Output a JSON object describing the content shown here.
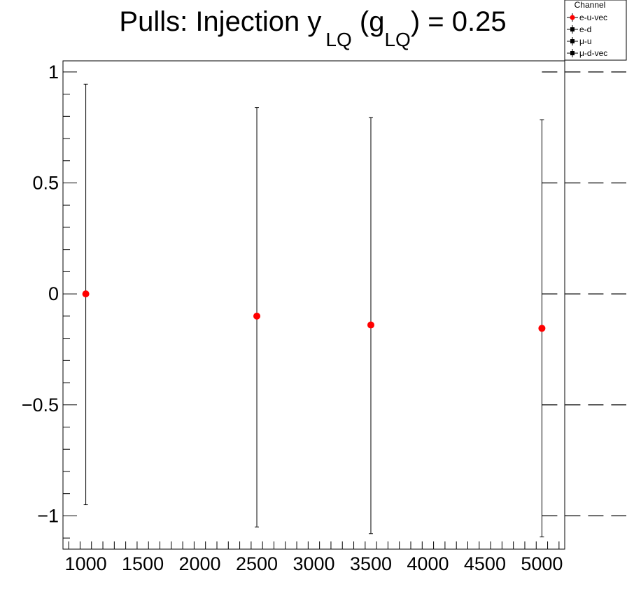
{
  "chart_data": {
    "type": "scatter",
    "title": {
      "main": "Pulls: Injection y",
      "sub1": "LQ",
      "mid": " (g",
      "sub2": "LQ",
      "end": ") = 0.25"
    },
    "xlabel": "",
    "ylabel": "",
    "xlim": [
      800,
      5200
    ],
    "ylim": [
      -1.15,
      1.05
    ],
    "x_ticks": [
      1000,
      1500,
      2000,
      2500,
      3000,
      3500,
      4000,
      4500,
      5000
    ],
    "x_tick_labels": [
      "1000",
      "1500",
      "2000",
      "2500",
      "3000",
      "3500",
      "4000",
      "4500",
      "5000"
    ],
    "y_ticks": [
      1,
      0.5,
      0,
      -0.5,
      -1
    ],
    "y_tick_labels": [
      "1",
      "0.5",
      "0",
      "−0.5",
      "−1"
    ],
    "reference_lines": [
      1,
      0.5,
      0,
      -0.5,
      -1
    ],
    "grid": false,
    "legend_placement": "top-right",
    "legend": {
      "title": "Channel",
      "entries": [
        "e-u-vec",
        "e-d",
        "μ-u",
        "μ-d-vec"
      ]
    },
    "series": [
      {
        "name": "e-u-vec",
        "color": "#ff0000",
        "x": [
          1000,
          2500,
          3500,
          5000
        ],
        "y": [
          0.0,
          -0.1,
          -0.14,
          -0.155
        ],
        "yerr_low": [
          0.95,
          0.95,
          0.94,
          0.94
        ],
        "yerr_high": [
          0.945,
          0.94,
          0.935,
          0.94
        ]
      }
    ]
  }
}
